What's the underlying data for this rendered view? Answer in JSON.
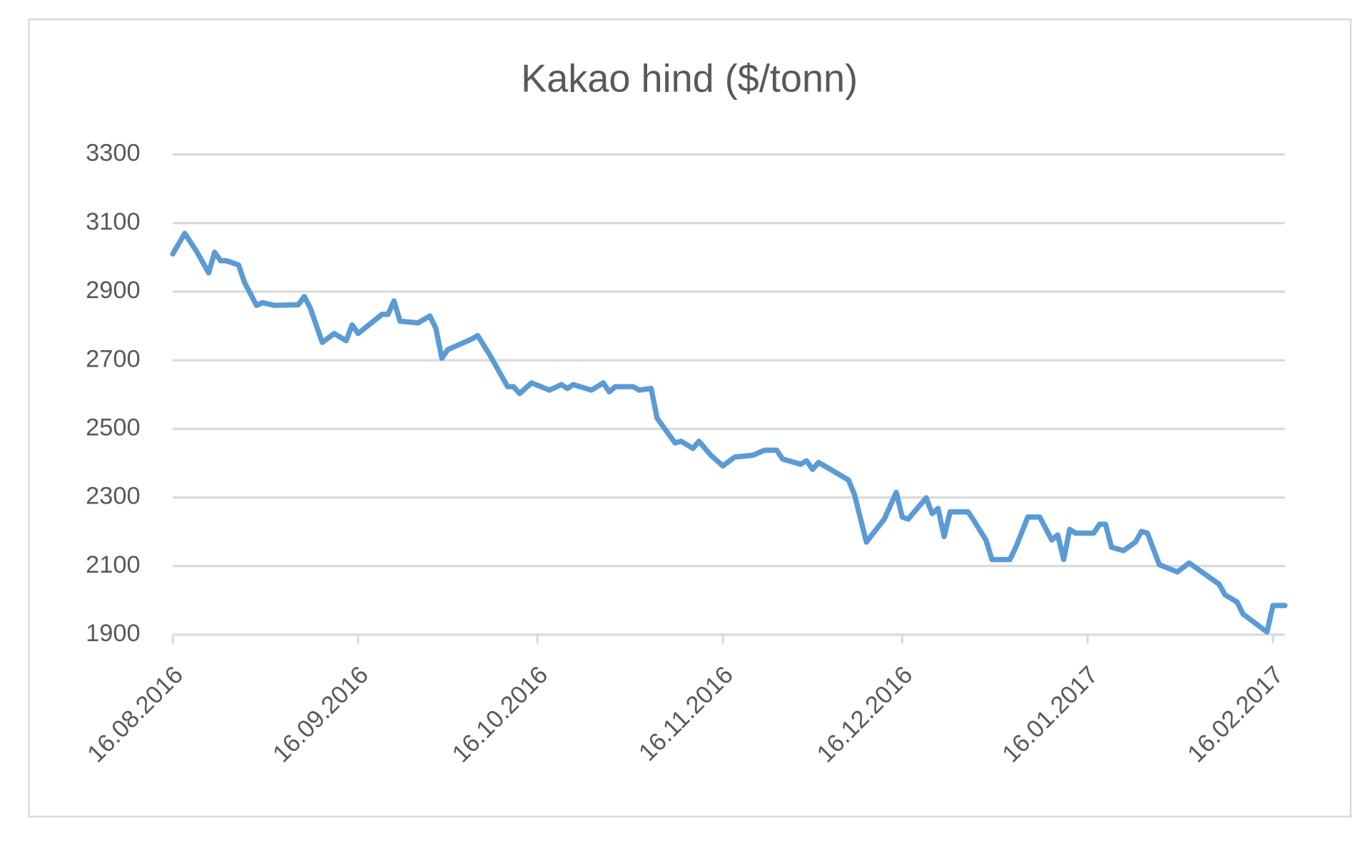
{
  "chart_data": {
    "type": "line",
    "title": "Kakao hind ($/tonn)",
    "x": [
      "2016-08-16",
      "2016-08-18",
      "2016-08-20",
      "2016-08-22",
      "2016-08-23",
      "2016-08-24",
      "2016-08-25",
      "2016-08-27",
      "2016-08-28",
      "2016-08-30",
      "2016-08-31",
      "2016-09-02",
      "2016-09-06",
      "2016-09-07",
      "2016-09-08",
      "2016-09-10",
      "2016-09-12",
      "2016-09-14",
      "2016-09-15",
      "2016-09-16",
      "2016-09-20",
      "2016-09-21",
      "2016-09-22",
      "2016-09-23",
      "2016-09-26",
      "2016-09-28",
      "2016-09-29",
      "2016-09-30",
      "2016-10-01",
      "2016-10-05",
      "2016-10-06",
      "2016-10-08",
      "2016-10-11",
      "2016-10-12",
      "2016-10-13",
      "2016-10-15",
      "2016-10-18",
      "2016-10-20",
      "2016-10-21",
      "2016-10-22",
      "2016-10-25",
      "2016-10-27",
      "2016-10-28",
      "2016-10-29",
      "2016-11-01",
      "2016-11-02",
      "2016-11-04",
      "2016-11-05",
      "2016-11-08",
      "2016-11-09",
      "2016-11-11",
      "2016-11-12",
      "2016-11-14",
      "2016-11-16",
      "2016-11-18",
      "2016-11-21",
      "2016-11-23",
      "2016-11-25",
      "2016-11-26",
      "2016-11-29",
      "2016-11-30",
      "2016-12-01",
      "2016-12-02",
      "2016-12-04",
      "2016-12-07",
      "2016-12-08",
      "2016-12-10",
      "2016-12-13",
      "2016-12-15",
      "2016-12-16",
      "2016-12-17",
      "2016-12-20",
      "2016-12-21",
      "2016-12-22",
      "2016-12-23",
      "2016-12-24",
      "2016-12-27",
      "2016-12-28",
      "2016-12-30",
      "2016-12-31",
      "2017-01-03",
      "2017-01-04",
      "2017-01-06",
      "2017-01-08",
      "2017-01-10",
      "2017-01-11",
      "2017-01-12",
      "2017-01-13",
      "2017-01-14",
      "2017-01-17",
      "2017-01-18",
      "2017-01-19",
      "2017-01-20",
      "2017-01-22",
      "2017-01-24",
      "2017-01-25",
      "2017-01-26",
      "2017-01-28",
      "2017-01-31",
      "2017-02-02",
      "2017-02-07",
      "2017-02-08",
      "2017-02-10",
      "2017-02-11",
      "2017-02-15",
      "2017-02-16",
      "2017-02-18"
    ],
    "values": [
      3010,
      3070,
      3017,
      2955,
      3015,
      2990,
      2990,
      2978,
      2927,
      2860,
      2868,
      2860,
      2862,
      2886,
      2852,
      2752,
      2778,
      2757,
      2803,
      2778,
      2834,
      2834,
      2873,
      2814,
      2809,
      2829,
      2793,
      2706,
      2731,
      2762,
      2772,
      2716,
      2623,
      2623,
      2603,
      2634,
      2613,
      2629,
      2618,
      2629,
      2613,
      2634,
      2608,
      2623,
      2623,
      2613,
      2618,
      2531,
      2459,
      2464,
      2443,
      2464,
      2423,
      2392,
      2418,
      2423,
      2438,
      2438,
      2412,
      2397,
      2407,
      2382,
      2402,
      2382,
      2351,
      2309,
      2170,
      2237,
      2315,
      2243,
      2237,
      2299,
      2253,
      2268,
      2186,
      2258,
      2258,
      2232,
      2176,
      2119,
      2119,
      2155,
      2243,
      2243,
      2176,
      2191,
      2119,
      2207,
      2196,
      2196,
      2222,
      2222,
      2155,
      2145,
      2170,
      2201,
      2196,
      2104,
      2083,
      2109,
      2047,
      2016,
      1995,
      1960,
      1908,
      1985,
      1985
    ],
    "color": "#5b9bd5",
    "xlim": [
      "2016-08-16",
      "2017-02-18"
    ],
    "xticks": [
      {
        "value": "2016-08-16",
        "label": "16.08.2016"
      },
      {
        "value": "2016-09-16",
        "label": "16.09.2016"
      },
      {
        "value": "2016-10-16",
        "label": "16.10.2016"
      },
      {
        "value": "2016-11-16",
        "label": "16.11.2016"
      },
      {
        "value": "2016-12-16",
        "label": "16.12.2016"
      },
      {
        "value": "2017-01-16",
        "label": "16.01.2017"
      },
      {
        "value": "2017-02-16",
        "label": "16.02.2017"
      }
    ],
    "ylim": [
      1900,
      3300
    ],
    "yticks": [
      1900,
      2100,
      2300,
      2500,
      2700,
      2900,
      3100,
      3300
    ],
    "grid": true
  }
}
